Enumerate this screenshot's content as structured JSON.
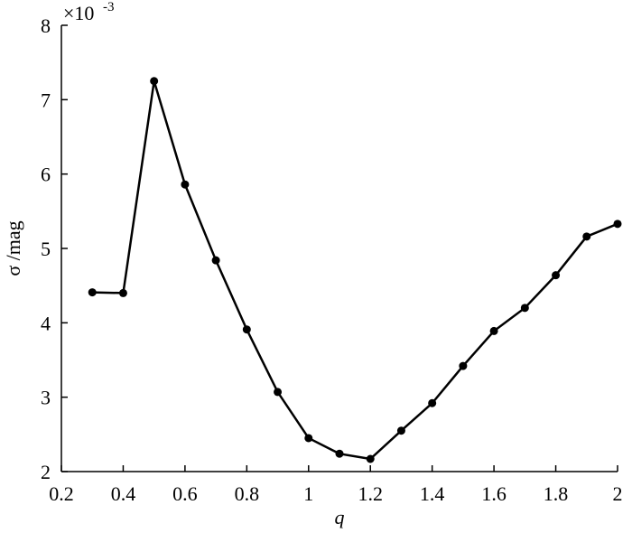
{
  "chart_data": {
    "type": "line",
    "x_label": "q",
    "y_label": "σ /mag",
    "y_multiplier": "×10",
    "y_multiplier_exp": "-3",
    "x": [
      0.3,
      0.4,
      0.5,
      0.6,
      0.7,
      0.8,
      0.9,
      1.0,
      1.1,
      1.2,
      1.3,
      1.4,
      1.5,
      1.6,
      1.7,
      1.8,
      1.9,
      2.0
    ],
    "series": [
      {
        "color": "#000000",
        "values": [
          4.41,
          4.4,
          7.25,
          5.86,
          4.84,
          3.91,
          3.07,
          2.45,
          2.24,
          2.17,
          2.55,
          2.92,
          3.42,
          3.89,
          4.2,
          4.64,
          5.16,
          5.33
        ]
      }
    ],
    "xlim": [
      0.2,
      2
    ],
    "xticks": [
      0.2,
      0.4,
      0.6,
      0.8,
      1,
      1.2,
      1.4,
      1.6,
      1.8,
      2
    ],
    "ylim": [
      2,
      8
    ],
    "yticks": [
      2,
      3,
      4,
      5,
      6,
      7,
      8
    ]
  }
}
